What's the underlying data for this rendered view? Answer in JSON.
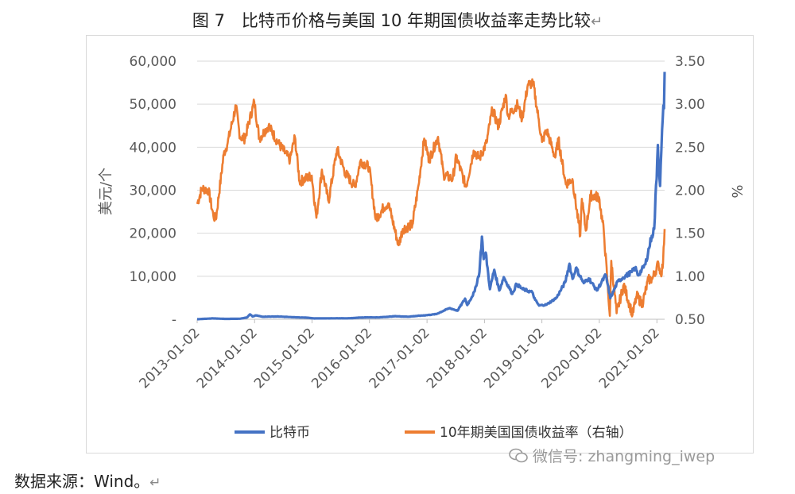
{
  "page": {
    "title": "图 7　比特币价格与美国 10 年期国债收益率走势比较",
    "source_note": "数据来源：Wind。",
    "watermark": "微信号: zhangming_iwep",
    "return_mark": "↵"
  },
  "chart_data": {
    "type": "line",
    "ylabel_left": "美元/个",
    "ylabel_right": "%",
    "ylim_left": [
      0,
      60000
    ],
    "ylim_right": [
      0.5,
      3.5
    ],
    "y_ticks_left": [
      "-",
      "10,000",
      "20,000",
      "30,000",
      "40,000",
      "50,000",
      "60,000"
    ],
    "y_ticks_right": [
      "0.50",
      "1.00",
      "1.50",
      "2.00",
      "2.50",
      "3.00",
      "3.50"
    ],
    "x_range": [
      "2013-01-02",
      "2021-02-20"
    ],
    "x_ticks": [
      "2013-01-02",
      "2014-01-02",
      "2015-01-02",
      "2016-01-02",
      "2017-01-02",
      "2018-01-02",
      "2019-01-02",
      "2020-01-02",
      "2021-01-02"
    ],
    "legend_position": "bottom",
    "gridlines": true,
    "series": [
      {
        "name": "比特币",
        "axis": "left",
        "color": "#4472C4",
        "points": [
          [
            "2013-01-02",
            13
          ],
          [
            "2013-04-10",
            200
          ],
          [
            "2013-07-01",
            90
          ],
          [
            "2013-10-01",
            130
          ],
          [
            "2013-11-15",
            420
          ],
          [
            "2013-12-04",
            1150
          ],
          [
            "2013-12-20",
            650
          ],
          [
            "2014-01-10",
            900
          ],
          [
            "2014-02-20",
            600
          ],
          [
            "2014-06-01",
            640
          ],
          [
            "2014-09-01",
            480
          ],
          [
            "2014-12-01",
            370
          ],
          [
            "2015-01-15",
            200
          ],
          [
            "2015-06-01",
            230
          ],
          [
            "2015-09-01",
            235
          ],
          [
            "2015-11-05",
            400
          ],
          [
            "2015-12-20",
            440
          ],
          [
            "2016-03-01",
            430
          ],
          [
            "2016-06-17",
            720
          ],
          [
            "2016-09-01",
            600
          ],
          [
            "2016-12-31",
            960
          ],
          [
            "2017-03-01",
            1200
          ],
          [
            "2017-05-25",
            2600
          ],
          [
            "2017-07-15",
            2000
          ],
          [
            "2017-09-01",
            4800
          ],
          [
            "2017-09-15",
            3300
          ],
          [
            "2017-11-01",
            6500
          ],
          [
            "2017-12-01",
            11000
          ],
          [
            "2017-12-17",
            19200
          ],
          [
            "2017-12-28",
            14000
          ],
          [
            "2018-01-10",
            15500
          ],
          [
            "2018-02-06",
            7000
          ],
          [
            "2018-03-05",
            11500
          ],
          [
            "2018-04-06",
            6700
          ],
          [
            "2018-05-05",
            9800
          ],
          [
            "2018-06-28",
            5900
          ],
          [
            "2018-07-25",
            8200
          ],
          [
            "2018-09-01",
            7000
          ],
          [
            "2018-11-01",
            6300
          ],
          [
            "2018-11-20",
            4500
          ],
          [
            "2018-12-15",
            3200
          ],
          [
            "2019-02-01",
            3400
          ],
          [
            "2019-04-05",
            5000
          ],
          [
            "2019-05-30",
            8600
          ],
          [
            "2019-06-26",
            12900
          ],
          [
            "2019-07-16",
            9400
          ],
          [
            "2019-08-06",
            11900
          ],
          [
            "2019-09-25",
            8400
          ],
          [
            "2019-10-27",
            9500
          ],
          [
            "2019-12-17",
            6700
          ],
          [
            "2020-02-12",
            10300
          ],
          [
            "2020-03-12",
            4900
          ],
          [
            "2020-04-29",
            8800
          ],
          [
            "2020-06-01",
            9700
          ],
          [
            "2020-07-27",
            11000
          ],
          [
            "2020-08-17",
            12000
          ],
          [
            "2020-09-05",
            10200
          ],
          [
            "2020-10-21",
            12800
          ],
          [
            "2020-11-30",
            19400
          ],
          [
            "2020-12-16",
            21000
          ],
          [
            "2021-01-08",
            40500
          ],
          [
            "2021-01-22",
            31000
          ],
          [
            "2021-02-08",
            46500
          ],
          [
            "2021-02-16",
            49000
          ],
          [
            "2021-02-20",
            57500
          ]
        ]
      },
      {
        "name": "10年期美国国债收益率（右轴）",
        "axis": "right",
        "color": "#ED7D31",
        "points": [
          [
            "2013-01-02",
            1.84
          ],
          [
            "2013-02-01",
            2.02
          ],
          [
            "2013-03-15",
            2.0
          ],
          [
            "2013-04-15",
            1.7
          ],
          [
            "2013-05-01",
            1.66
          ],
          [
            "2013-06-20",
            2.42
          ],
          [
            "2013-07-15",
            2.55
          ],
          [
            "2013-09-05",
            2.98
          ],
          [
            "2013-10-01",
            2.62
          ],
          [
            "2013-11-01",
            2.6
          ],
          [
            "2013-12-31",
            3.03
          ],
          [
            "2014-02-01",
            2.6
          ],
          [
            "2014-04-01",
            2.75
          ],
          [
            "2014-06-01",
            2.55
          ],
          [
            "2014-08-15",
            2.35
          ],
          [
            "2014-09-15",
            2.62
          ],
          [
            "2014-10-15",
            2.1
          ],
          [
            "2014-12-31",
            2.17
          ],
          [
            "2015-01-30",
            1.68
          ],
          [
            "2015-03-06",
            2.24
          ],
          [
            "2015-04-17",
            1.87
          ],
          [
            "2015-06-10",
            2.48
          ],
          [
            "2015-08-01",
            2.2
          ],
          [
            "2015-10-01",
            2.04
          ],
          [
            "2015-11-06",
            2.34
          ],
          [
            "2015-12-31",
            2.27
          ],
          [
            "2016-02-11",
            1.66
          ],
          [
            "2016-04-01",
            1.8
          ],
          [
            "2016-05-01",
            1.85
          ],
          [
            "2016-07-05",
            1.36
          ],
          [
            "2016-08-01",
            1.55
          ],
          [
            "2016-10-01",
            1.6
          ],
          [
            "2016-11-09",
            2.06
          ],
          [
            "2016-12-15",
            2.6
          ],
          [
            "2017-01-15",
            2.35
          ],
          [
            "2017-03-13",
            2.62
          ],
          [
            "2017-04-18",
            2.18
          ],
          [
            "2017-06-14",
            2.13
          ],
          [
            "2017-07-07",
            2.39
          ],
          [
            "2017-09-07",
            2.04
          ],
          [
            "2017-10-25",
            2.46
          ],
          [
            "2017-12-01",
            2.37
          ],
          [
            "2018-01-15",
            2.55
          ],
          [
            "2018-02-21",
            2.94
          ],
          [
            "2018-04-01",
            2.74
          ],
          [
            "2018-05-17",
            3.11
          ],
          [
            "2018-06-01",
            2.86
          ],
          [
            "2018-08-01",
            3.0
          ],
          [
            "2018-08-29",
            2.83
          ],
          [
            "2018-10-05",
            3.23
          ],
          [
            "2018-11-08",
            3.24
          ],
          [
            "2018-12-10",
            2.85
          ],
          [
            "2019-01-03",
            2.56
          ],
          [
            "2019-02-01",
            2.7
          ],
          [
            "2019-03-28",
            2.38
          ],
          [
            "2019-04-17",
            2.59
          ],
          [
            "2019-06-03",
            2.07
          ],
          [
            "2019-07-15",
            2.13
          ],
          [
            "2019-09-03",
            1.47
          ],
          [
            "2019-09-13",
            1.9
          ],
          [
            "2019-10-08",
            1.53
          ],
          [
            "2019-11-08",
            1.94
          ],
          [
            "2019-12-31",
            1.92
          ],
          [
            "2020-01-31",
            1.51
          ],
          [
            "2020-03-09",
            0.54
          ],
          [
            "2020-03-18",
            1.18
          ],
          [
            "2020-04-21",
            0.57
          ],
          [
            "2020-06-05",
            0.9
          ],
          [
            "2020-07-31",
            0.55
          ],
          [
            "2020-08-26",
            0.77
          ],
          [
            "2020-10-01",
            0.68
          ],
          [
            "2020-11-09",
            0.96
          ],
          [
            "2020-12-04",
            0.97
          ],
          [
            "2021-01-12",
            1.15
          ],
          [
            "2021-01-27",
            1.02
          ],
          [
            "2021-02-10",
            1.15
          ],
          [
            "2021-02-20",
            1.55
          ]
        ]
      }
    ]
  }
}
